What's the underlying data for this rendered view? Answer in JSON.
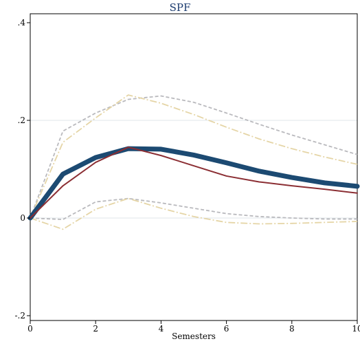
{
  "chart_data": {
    "type": "line",
    "title": "SPF",
    "xlabel": "Semesters",
    "ylabel": "",
    "xlim": [
      0,
      10
    ],
    "ylim": [
      -0.2,
      0.4
    ],
    "x_ticks": [
      0,
      2,
      4,
      6,
      8,
      10
    ],
    "x_tick_labels": [
      "0",
      "2",
      "4",
      "6",
      "8",
      "10"
    ],
    "y_ticks": [
      -0.2,
      0,
      0.2,
      0.4
    ],
    "y_tick_labels": [
      "-.2",
      "0",
      ".2",
      ".4"
    ],
    "grid": "horizontal",
    "legend": "none",
    "x": [
      0,
      1,
      2,
      3,
      4,
      5,
      6,
      7,
      8,
      9,
      10
    ],
    "series": [
      {
        "role": "upper-band-outer",
        "style": "dashed",
        "color": "#b9b9bd",
        "width": 1.8,
        "values": [
          0,
          0.178,
          0.215,
          0.243,
          0.25,
          0.237,
          0.215,
          0.192,
          0.17,
          0.15,
          0.13
        ]
      },
      {
        "role": "upper-band-inner",
        "style": "dash-dot",
        "color": "#e5d5a6",
        "width": 1.8,
        "values": [
          0,
          0.155,
          0.205,
          0.252,
          0.235,
          0.212,
          0.186,
          0.162,
          0.142,
          0.125,
          0.11
        ]
      },
      {
        "role": "lower-band-outer",
        "style": "dashed",
        "color": "#b9b9bd",
        "width": 1.8,
        "values": [
          0,
          -0.003,
          0.033,
          0.04,
          0.031,
          0.02,
          0.009,
          0.003,
          0.0,
          -0.002,
          -0.002
        ]
      },
      {
        "role": "lower-band-inner",
        "style": "dash-dot",
        "color": "#e5d5a6",
        "width": 1.8,
        "values": [
          0,
          -0.023,
          0.018,
          0.04,
          0.02,
          0.003,
          -0.009,
          -0.012,
          -0.011,
          -0.009,
          -0.007
        ]
      },
      {
        "role": "point-estimate",
        "style": "solid",
        "color": "#1c4a72",
        "width": 7,
        "values": [
          0,
          0.09,
          0.124,
          0.142,
          0.141,
          0.129,
          0.113,
          0.096,
          0.083,
          0.072,
          0.065
        ]
      },
      {
        "role": "comparison",
        "style": "solid",
        "color": "#8b2e33",
        "width": 2,
        "values": [
          0,
          0.066,
          0.114,
          0.145,
          0.128,
          0.107,
          0.086,
          0.074,
          0.066,
          0.059,
          0.051
        ]
      }
    ]
  }
}
